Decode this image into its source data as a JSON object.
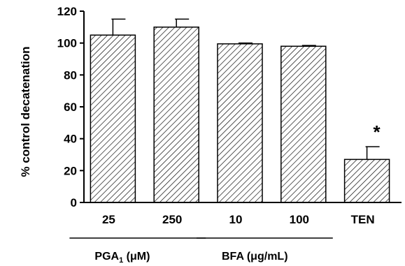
{
  "chart_data": {
    "type": "bar",
    "ylabel": "% control decatenation",
    "ylim": [
      0,
      120
    ],
    "yticks": [
      0,
      20,
      40,
      60,
      80,
      100,
      120
    ],
    "categories": [
      "25",
      "250",
      "10",
      "100",
      "TEN"
    ],
    "values": [
      105,
      110,
      99.5,
      98,
      27
    ],
    "errors": [
      10,
      5,
      0.5,
      0.5,
      8
    ],
    "significance": [
      "",
      "",
      "",
      "",
      "*"
    ],
    "groups": [
      {
        "label_main": "PGA",
        "label_sub": "1",
        "label_unit": " (μM)",
        "categories": [
          "25",
          "250"
        ]
      },
      {
        "label_main": "BFA (μg/mL)",
        "label_sub": "",
        "label_unit": "",
        "categories": [
          "10",
          "100"
        ]
      }
    ],
    "bar_fill": "hatched-diagonal",
    "bar_color": "#000000",
    "grid": false
  }
}
